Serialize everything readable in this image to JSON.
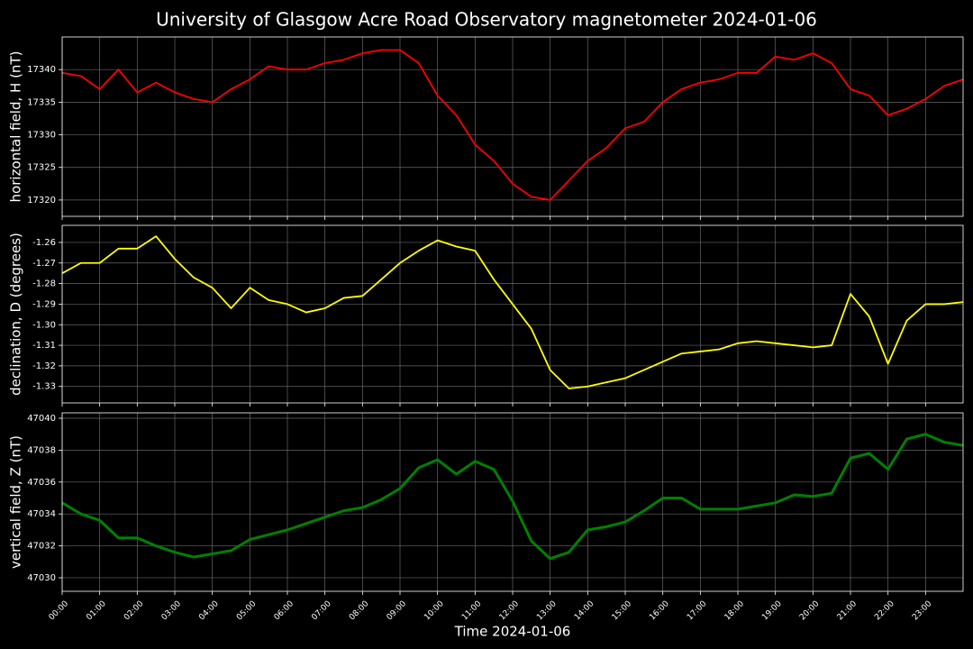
{
  "title": "University of Glasgow Acre Road Observatory magnetometer 2024-01-06",
  "chart_data": [
    {
      "type": "line",
      "ylabel": "horizontal field, H (nT)",
      "color": "#ff0000",
      "grid": true,
      "xlim": [
        0,
        24
      ],
      "ylim": [
        17317.5,
        17345
      ],
      "yticks": [
        17320,
        17325,
        17330,
        17335,
        17340
      ],
      "x": [
        0,
        0.5,
        1,
        1.5,
        2,
        2.5,
        3,
        3.5,
        4,
        4.5,
        5,
        5.5,
        6,
        6.5,
        7,
        7.5,
        8,
        8.5,
        9,
        9.5,
        10,
        10.5,
        11,
        11.5,
        12,
        12.5,
        13,
        13.5,
        14,
        14.5,
        15,
        15.5,
        16,
        16.5,
        17,
        17.5,
        18,
        18.5,
        19,
        19.5,
        20,
        20.5,
        21,
        21.5,
        22,
        22.5,
        23,
        23.5,
        24
      ],
      "values": [
        17339.5,
        17339,
        17337,
        17340,
        17336.5,
        17338,
        17336.5,
        17335.5,
        17335,
        17337,
        17338.5,
        17340.5,
        17340,
        17340,
        17341,
        17341.5,
        17342.5,
        17343,
        17343,
        17341,
        17336,
        17333,
        17328.5,
        17326,
        17322.5,
        17320.5,
        17320,
        17323,
        17326,
        17328,
        17331,
        17332,
        17335,
        17337,
        17338,
        17338.5,
        17339.5,
        17339.5,
        17342,
        17341.5,
        17342.5,
        17341,
        17337,
        17336,
        17333,
        17334,
        17335.5,
        17337.5,
        17338.5
      ]
    },
    {
      "type": "line",
      "ylabel": "declination, D (degrees)",
      "color": "#ffff00",
      "grid": true,
      "xlim": [
        0,
        24
      ],
      "ylim": [
        -1.338,
        -1.2517
      ],
      "yticks": [
        -1.26,
        -1.27,
        -1.28,
        -1.29,
        {
          "value": -1.3,
          "label": "-1.30"
        },
        -1.31,
        -1.32,
        -1.33
      ],
      "x": [
        0,
        0.5,
        1,
        1.5,
        2,
        2.5,
        3,
        3.5,
        4,
        4.5,
        5,
        5.5,
        6,
        6.5,
        7,
        7.5,
        8,
        8.5,
        9,
        9.5,
        10,
        10.5,
        11,
        11.5,
        12,
        12.5,
        13,
        13.5,
        14,
        14.5,
        15,
        15.5,
        16,
        16.5,
        17,
        17.5,
        18,
        18.5,
        19,
        19.5,
        20,
        20.5,
        21,
        21.5,
        22,
        22.5,
        23,
        23.5,
        24
      ],
      "values": [
        -1.275,
        -1.27,
        -1.27,
        -1.263,
        -1.263,
        -1.257,
        -1.268,
        -1.277,
        -1.282,
        -1.292,
        -1.282,
        -1.288,
        -1.29,
        -1.294,
        -1.292,
        -1.287,
        -1.286,
        -1.278,
        -1.27,
        -1.264,
        -1.259,
        -1.262,
        -1.264,
        -1.278,
        -1.29,
        -1.302,
        -1.322,
        -1.331,
        -1.33,
        -1.328,
        -1.326,
        -1.322,
        -1.318,
        -1.314,
        -1.313,
        -1.312,
        -1.309,
        -1.308,
        -1.309,
        -1.31,
        -1.311,
        -1.31,
        -1.285,
        -1.296,
        -1.319,
        -1.298,
        -1.29,
        -1.29,
        -1.289
      ]
    },
    {
      "type": "line",
      "ylabel": "vertical field, Z (nT)",
      "color": "#008000",
      "grid": true,
      "xlabel": "Time 2024-01-06",
      "xlim": [
        0,
        24
      ],
      "ylim": [
        47029.15,
        47040.34
      ],
      "yticks": [
        47030,
        47032,
        47034,
        47036,
        47038,
        47040
      ],
      "xticks": [
        {
          "value": 0,
          "label": "00:00"
        },
        {
          "value": 1,
          "label": "01:00"
        },
        {
          "value": 2,
          "label": "02:00"
        },
        {
          "value": 3,
          "label": "03:00"
        },
        {
          "value": 4,
          "label": "04:00"
        },
        {
          "value": 5,
          "label": "05:00"
        },
        {
          "value": 6,
          "label": "06:00"
        },
        {
          "value": 7,
          "label": "07:00"
        },
        {
          "value": 8,
          "label": "08:00"
        },
        {
          "value": 9,
          "label": "09:00"
        },
        {
          "value": 10,
          "label": "10:00"
        },
        {
          "value": 11,
          "label": "11:00"
        },
        {
          "value": 12,
          "label": "12:00"
        },
        {
          "value": 13,
          "label": "13:00"
        },
        {
          "value": 14,
          "label": "14:00"
        },
        {
          "value": 15,
          "label": "15:00"
        },
        {
          "value": 16,
          "label": "16:00"
        },
        {
          "value": 17,
          "label": "17:00"
        },
        {
          "value": 18,
          "label": "18:00"
        },
        {
          "value": 19,
          "label": "19:00"
        },
        {
          "value": 20,
          "label": "20:00"
        },
        {
          "value": 21,
          "label": "21:00"
        },
        {
          "value": 22,
          "label": "22:00"
        },
        {
          "value": 23,
          "label": "23:00"
        }
      ],
      "x": [
        0,
        0.5,
        1,
        1.5,
        2,
        2.5,
        3,
        3.5,
        4,
        4.5,
        5,
        5.5,
        6,
        6.5,
        7,
        7.5,
        8,
        8.5,
        9,
        9.5,
        10,
        10.5,
        11,
        11.5,
        12,
        12.5,
        13,
        13.5,
        14,
        14.5,
        15,
        15.5,
        16,
        16.5,
        17,
        17.5,
        18,
        18.5,
        19,
        19.5,
        20,
        20.5,
        21,
        21.5,
        22,
        22.5,
        23,
        23.5,
        24
      ],
      "values": [
        47034.7,
        47034,
        47033.6,
        47032.5,
        47032.5,
        47032,
        47031.6,
        47031.3,
        47031.5,
        47031.7,
        47032.4,
        47032.7,
        47033,
        47033.4,
        47033.8,
        47034.2,
        47034.4,
        47034.9,
        47035.6,
        47036.9,
        47037.4,
        47036.5,
        47037.3,
        47036.8,
        47034.8,
        47032.3,
        47031.2,
        47031.6,
        47033,
        47033.2,
        47033.5,
        47034.2,
        47035,
        47035,
        47034.3,
        47034.3,
        47034.3,
        47034.5,
        47034.7,
        47035.2,
        47035.1,
        47035.3,
        47037.5,
        47037.8,
        47036.8,
        47038.7,
        47039,
        47038.5,
        47038.3
      ]
    }
  ]
}
